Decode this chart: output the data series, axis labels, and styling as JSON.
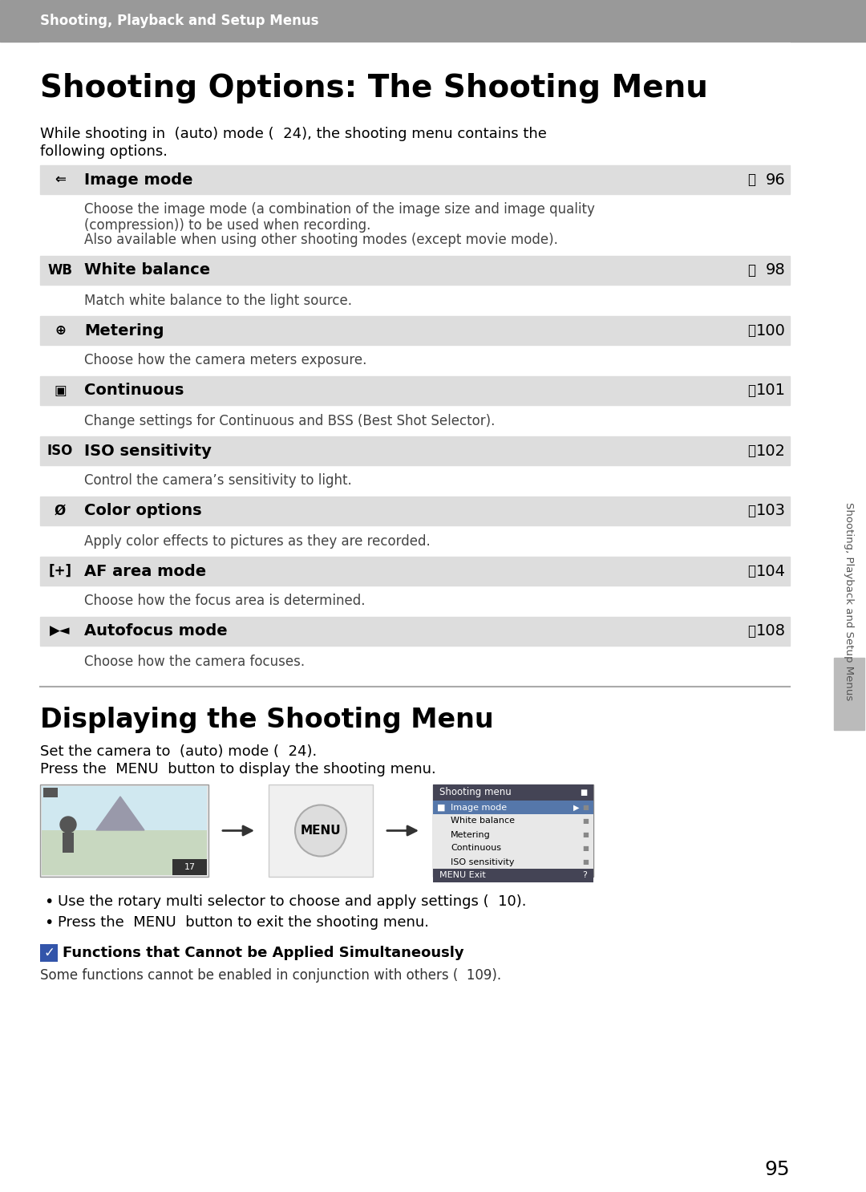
{
  "bg_color": "#ffffff",
  "header_bg": "#999999",
  "header_text_color": "#ffffff",
  "header_label": "Shooting, Playback and Setup Menus",
  "title": "Shooting Options: The Shooting Menu",
  "intro_line1": "While shooting in  (auto) mode (  24), the shooting menu contains the",
  "intro_line2": "following options.",
  "row_bg": "#dddddd",
  "rows": [
    {
      "icon": "⇐",
      "label": "Image mode",
      "page": "96",
      "desc_lines": [
        "Choose the image mode (a combination of the image size and image quality",
        "(compression)) to be used when recording.",
        "Also available when using other shooting modes (except movie mode)."
      ]
    },
    {
      "icon": "WB",
      "label": "White balance",
      "page": "98",
      "desc_lines": [
        "Match white balance to the light source."
      ]
    },
    {
      "icon": "⊕",
      "label": "Metering",
      "page": "100",
      "desc_lines": [
        "Choose how the camera meters exposure."
      ]
    },
    {
      "icon": "▣",
      "label": "Continuous",
      "page": "101",
      "desc_lines": [
        "Change settings for Continuous and BSS (Best Shot Selector)."
      ]
    },
    {
      "icon": "ISO",
      "label": "ISO sensitivity",
      "page": "102",
      "desc_lines": [
        "Control the camera’s sensitivity to light."
      ]
    },
    {
      "icon": "Ø",
      "label": "Color options",
      "page": "103",
      "desc_lines": [
        "Apply color effects to pictures as they are recorded."
      ]
    },
    {
      "icon": "[+]",
      "label": "AF area mode",
      "page": "104",
      "desc_lines": [
        "Choose how the focus area is determined."
      ]
    },
    {
      "icon": "▶◄",
      "label": "Autofocus mode",
      "page": "108",
      "desc_lines": [
        "Choose how the camera focuses."
      ]
    }
  ],
  "section2_title": "Displaying the Shooting Menu",
  "section2_line1": "Set the camera to  (auto) mode (  24).",
  "section2_line2": "Press the  MENU  button to display the shooting menu.",
  "bullet1": "Use the rotary multi selector to choose and apply settings (  10).",
  "bullet2": "Press the  MENU  button to exit the shooting menu.",
  "note_title": "  Functions that Cannot be Applied Simultaneously",
  "note_text": "Some functions cannot be enabled in conjunction with others (  109).",
  "page_number": "95",
  "sidebar_text": "Shooting, Playback and Setup Menus",
  "menu_screen_items": [
    "Image mode",
    "White balance",
    "Metering",
    "Continuous",
    "ISO sensitivity"
  ],
  "divider_color": "#aaaaaa",
  "sidebar_tab_color": "#bbbbbb"
}
